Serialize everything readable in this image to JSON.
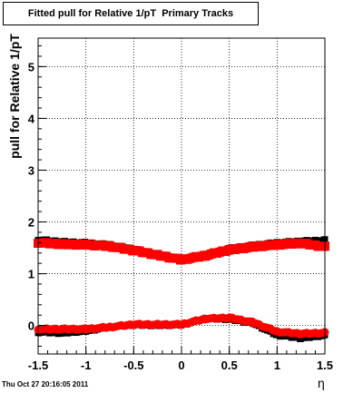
{
  "chart_data": {
    "type": "scatter",
    "title": "Fitted pull for Relative 1/pT  Primary Tracks",
    "xlabel": "η",
    "ylabel": "pull for Relative 1/pT",
    "xlim": [
      -1.5,
      1.5
    ],
    "ylim": [
      -0.55,
      5.55
    ],
    "xticks": [
      "-1.5",
      "-1",
      "-0.5",
      "0",
      "0.5",
      "1",
      "1.5"
    ],
    "yticks": [
      "0",
      "1",
      "2",
      "3",
      "4",
      "5"
    ],
    "series": [
      {
        "color": "#000000",
        "role": "sigma",
        "x": [
          -1.5,
          -1.25,
          -1.0,
          -0.75,
          -0.5,
          -0.25,
          0.0,
          0.25,
          0.5,
          0.75,
          1.0,
          1.25,
          1.5
        ],
        "y": [
          1.67,
          1.63,
          1.61,
          1.57,
          1.49,
          1.38,
          1.3,
          1.38,
          1.5,
          1.56,
          1.61,
          1.64,
          1.66
        ]
      },
      {
        "color": "#ff0000",
        "role": "sigma",
        "x": [
          -1.5,
          -1.25,
          -1.0,
          -0.75,
          -0.5,
          -0.25,
          0.0,
          0.25,
          0.5,
          0.75,
          1.0,
          1.25,
          1.5
        ],
        "y": [
          1.6,
          1.57,
          1.56,
          1.53,
          1.45,
          1.36,
          1.27,
          1.35,
          1.46,
          1.52,
          1.56,
          1.59,
          1.52
        ]
      },
      {
        "color": "#000000",
        "role": "mean",
        "x": [
          -1.5,
          -1.25,
          -1.0,
          -0.75,
          -0.5,
          -0.25,
          0.0,
          0.25,
          0.5,
          0.75,
          1.0,
          1.25,
          1.5
        ],
        "y": [
          -0.14,
          -0.16,
          -0.12,
          -0.04,
          0.0,
          -0.01,
          0.0,
          0.12,
          0.11,
          0.03,
          -0.2,
          -0.26,
          -0.2
        ]
      },
      {
        "color": "#ff0000",
        "role": "mean",
        "x": [
          -1.5,
          -1.25,
          -1.0,
          -0.75,
          -0.5,
          -0.25,
          0.0,
          0.25,
          0.5,
          0.75,
          1.0,
          1.25,
          1.5
        ],
        "y": [
          -0.07,
          -0.07,
          -0.07,
          -0.03,
          0.02,
          0.02,
          0.02,
          0.13,
          0.15,
          0.06,
          -0.12,
          -0.16,
          -0.14
        ]
      }
    ],
    "grid": true
  },
  "footer": "Thu Oct 27 20:16:05 2011"
}
